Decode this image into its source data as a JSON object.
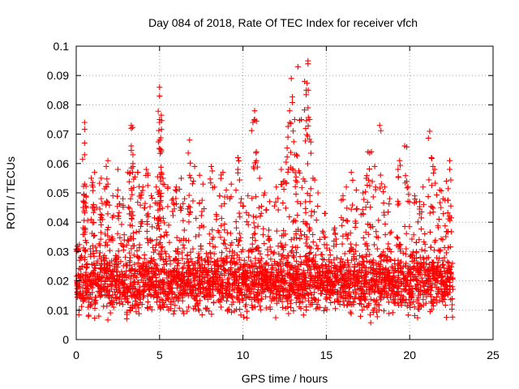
{
  "chart_data": {
    "type": "scatter",
    "title": "Day 084 of 2018, Rate Of TEC Index for receiver vfch",
    "xlabel": "GPS time / hours",
    "ylabel": "ROTI / TECUs",
    "xlim": [
      0,
      25
    ],
    "ylim": [
      0,
      0.1
    ],
    "x_ticks": [
      0,
      5,
      10,
      15,
      20,
      25
    ],
    "x_tick_labels": [
      "0",
      "5",
      "10",
      "15",
      "20",
      "25"
    ],
    "y_ticks": [
      0,
      0.01,
      0.02,
      0.03,
      0.04,
      0.05,
      0.06,
      0.07,
      0.08,
      0.09,
      0.1
    ],
    "y_tick_labels": [
      "0",
      "0.01",
      "0.02",
      "0.03",
      "0.04",
      "0.05",
      "0.06",
      "0.07",
      "0.08",
      "0.09",
      "0.1"
    ],
    "grid": true,
    "marker": "+",
    "marker_color": "#ff0000",
    "series": [
      {
        "name": "ROTI",
        "points": [
          [
            0.1,
            0.031
          ],
          [
            0.5,
            0.074
          ],
          [
            0.5,
            0.067
          ],
          [
            0.5,
            0.063
          ],
          [
            0.5,
            0.053
          ],
          [
            0.6,
            0.045
          ],
          [
            0.9,
            0.055
          ],
          [
            1.0,
            0.052
          ],
          [
            1.1,
            0.057
          ],
          [
            1.5,
            0.055
          ],
          [
            1.5,
            0.048
          ],
          [
            1.8,
            0.059
          ],
          [
            1.9,
            0.053
          ],
          [
            1.9,
            0.061
          ],
          [
            2.2,
            0.049
          ],
          [
            2.5,
            0.058
          ],
          [
            2.5,
            0.051
          ],
          [
            2.8,
            0.048
          ],
          [
            3.1,
            0.057
          ],
          [
            3.3,
            0.073
          ],
          [
            3.3,
            0.072
          ],
          [
            3.3,
            0.066
          ],
          [
            3.4,
            0.063
          ],
          [
            3.4,
            0.06
          ],
          [
            3.7,
            0.057
          ],
          [
            3.9,
            0.05
          ],
          [
            4.0,
            0.052
          ],
          [
            4.2,
            0.058
          ],
          [
            4.3,
            0.056
          ],
          [
            4.5,
            0.049
          ],
          [
            4.8,
            0.052
          ],
          [
            5.0,
            0.086
          ],
          [
            5.0,
            0.083
          ],
          [
            5.0,
            0.075
          ],
          [
            5.0,
            0.074
          ],
          [
            5.0,
            0.068
          ],
          [
            5.1,
            0.064
          ],
          [
            5.1,
            0.057
          ],
          [
            5.2,
            0.055
          ],
          [
            5.5,
            0.052
          ],
          [
            5.8,
            0.048
          ],
          [
            6.0,
            0.052
          ],
          [
            6.3,
            0.055
          ],
          [
            6.5,
            0.048
          ],
          [
            6.8,
            0.068
          ],
          [
            6.8,
            0.056
          ],
          [
            7.1,
            0.059
          ],
          [
            7.4,
            0.056
          ],
          [
            7.6,
            0.053
          ],
          [
            8.1,
            0.059
          ],
          [
            8.3,
            0.052
          ],
          [
            8.6,
            0.049
          ],
          [
            8.8,
            0.057
          ],
          [
            9.0,
            0.051
          ],
          [
            9.3,
            0.053
          ],
          [
            9.7,
            0.062
          ],
          [
            9.7,
            0.058
          ],
          [
            9.9,
            0.048
          ],
          [
            10.3,
            0.049
          ],
          [
            10.6,
            0.074
          ],
          [
            10.7,
            0.078
          ],
          [
            10.7,
            0.075
          ],
          [
            10.8,
            0.064
          ],
          [
            11.0,
            0.055
          ],
          [
            11.3,
            0.05
          ],
          [
            11.6,
            0.047
          ],
          [
            12.0,
            0.052
          ],
          [
            12.3,
            0.058
          ],
          [
            12.5,
            0.054
          ],
          [
            12.7,
            0.069
          ],
          [
            12.8,
            0.078
          ],
          [
            12.9,
            0.089
          ],
          [
            13.1,
            0.075
          ],
          [
            13.1,
            0.063
          ],
          [
            13.2,
            0.063
          ],
          [
            13.3,
            0.093
          ],
          [
            13.5,
            0.075
          ],
          [
            13.7,
            0.088
          ],
          [
            13.8,
            0.085
          ],
          [
            13.9,
            0.079
          ],
          [
            13.9,
            0.094
          ],
          [
            13.9,
            0.095
          ],
          [
            14.0,
            0.075
          ],
          [
            14.2,
            0.055
          ],
          [
            14.5,
            0.05
          ],
          [
            14.9,
            0.043
          ],
          [
            15.5,
            0.038
          ],
          [
            16.0,
            0.049
          ],
          [
            16.2,
            0.052
          ],
          [
            16.5,
            0.057
          ],
          [
            16.8,
            0.051
          ],
          [
            17.2,
            0.05
          ],
          [
            17.4,
            0.055
          ],
          [
            17.5,
            0.064
          ],
          [
            17.7,
            0.064
          ],
          [
            17.9,
            0.059
          ],
          [
            18.2,
            0.073
          ],
          [
            18.5,
            0.052
          ],
          [
            18.8,
            0.048
          ],
          [
            19.3,
            0.058
          ],
          [
            19.4,
            0.061
          ],
          [
            19.7,
            0.066
          ],
          [
            19.9,
            0.052
          ],
          [
            20.3,
            0.049
          ],
          [
            20.6,
            0.047
          ],
          [
            20.8,
            0.052
          ],
          [
            21.2,
            0.071
          ],
          [
            21.3,
            0.062
          ],
          [
            21.5,
            0.058
          ],
          [
            21.8,
            0.051
          ],
          [
            22.0,
            0.048
          ],
          [
            22.2,
            0.054
          ],
          [
            22.4,
            0.061
          ],
          [
            22.4,
            0.058
          ]
        ],
        "baseline_band": [
          0.005,
          0.035
        ],
        "baseline_x_range": [
          0,
          22.6
        ]
      }
    ]
  }
}
